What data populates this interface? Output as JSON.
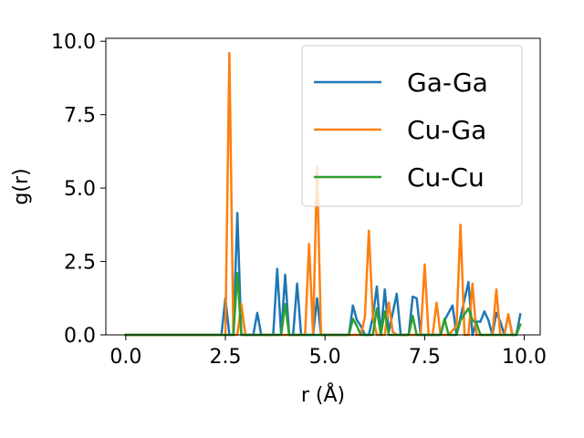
{
  "chart_data": {
    "type": "line",
    "title": "",
    "xlabel": "r (Å)",
    "ylabel": "g(r)",
    "xlim": [
      -0.5,
      10.4
    ],
    "ylim": [
      0,
      10.1
    ],
    "xticks": [
      "0.0",
      "2.5",
      "5.0",
      "7.5",
      "10.0"
    ],
    "yticks": [
      "0.0",
      "2.5",
      "5.0",
      "7.5",
      "10.0"
    ],
    "grid": false,
    "legend_position": "top-right",
    "series": [
      {
        "name": "Ga-Ga",
        "color": "#1f77b4",
        "points": [
          [
            0,
            0
          ],
          [
            2.4,
            0
          ],
          [
            2.5,
            1.25
          ],
          [
            2.6,
            0
          ],
          [
            2.7,
            0
          ],
          [
            2.8,
            4.15
          ],
          [
            2.9,
            0
          ],
          [
            3.2,
            0
          ],
          [
            3.3,
            0.75
          ],
          [
            3.4,
            0
          ],
          [
            3.7,
            0
          ],
          [
            3.8,
            2.25
          ],
          [
            3.9,
            0
          ],
          [
            4.0,
            2.05
          ],
          [
            4.1,
            0
          ],
          [
            4.2,
            0
          ],
          [
            4.3,
            1.75
          ],
          [
            4.4,
            0
          ],
          [
            4.7,
            0
          ],
          [
            4.8,
            1.25
          ],
          [
            4.9,
            0
          ],
          [
            5.6,
            0
          ],
          [
            5.7,
            1.0
          ],
          [
            5.8,
            0.5
          ],
          [
            5.9,
            0.3
          ],
          [
            6.0,
            0
          ],
          [
            6.1,
            0
          ],
          [
            6.2,
            0.6
          ],
          [
            6.3,
            1.65
          ],
          [
            6.4,
            0
          ],
          [
            6.5,
            1.55
          ],
          [
            6.6,
            0.1
          ],
          [
            6.8,
            1.4
          ],
          [
            6.9,
            0
          ],
          [
            7.1,
            0
          ],
          [
            7.2,
            1.3
          ],
          [
            7.3,
            1.25
          ],
          [
            7.4,
            0
          ],
          [
            7.9,
            0
          ],
          [
            8.0,
            0.5
          ],
          [
            8.2,
            1.0
          ],
          [
            8.3,
            0
          ],
          [
            8.6,
            1.8
          ],
          [
            8.7,
            0
          ],
          [
            8.8,
            0.45
          ],
          [
            8.9,
            0.45
          ],
          [
            9.0,
            0.8
          ],
          [
            9.1,
            0.5
          ],
          [
            9.2,
            0
          ],
          [
            9.3,
            0.75
          ],
          [
            9.4,
            0.45
          ],
          [
            9.5,
            0
          ],
          [
            9.6,
            0.7
          ],
          [
            9.7,
            0
          ],
          [
            9.8,
            0
          ],
          [
            9.9,
            0.7
          ]
        ]
      },
      {
        "name": "Cu-Ga",
        "color": "#ff7f0e",
        "points": [
          [
            0,
            0
          ],
          [
            2.5,
            0
          ],
          [
            2.6,
            9.6
          ],
          [
            2.7,
            0
          ],
          [
            2.8,
            0
          ],
          [
            2.9,
            1.05
          ],
          [
            3.0,
            0
          ],
          [
            4.5,
            0
          ],
          [
            4.6,
            3.1
          ],
          [
            4.7,
            0
          ],
          [
            4.8,
            5.75
          ],
          [
            4.9,
            0
          ],
          [
            5.9,
            0
          ],
          [
            6.0,
            0.6
          ],
          [
            6.1,
            3.55
          ],
          [
            6.2,
            0.6
          ],
          [
            6.3,
            0
          ],
          [
            6.5,
            0
          ],
          [
            6.6,
            1.1
          ],
          [
            6.7,
            0.1
          ],
          [
            6.8,
            0
          ],
          [
            7.4,
            0
          ],
          [
            7.5,
            2.4
          ],
          [
            7.6,
            0
          ],
          [
            7.7,
            0
          ],
          [
            7.8,
            1.1
          ],
          [
            7.9,
            0
          ],
          [
            8.1,
            0
          ],
          [
            8.3,
            0.3
          ],
          [
            8.4,
            3.75
          ],
          [
            8.5,
            0
          ],
          [
            8.6,
            0
          ],
          [
            8.7,
            1.75
          ],
          [
            8.8,
            0
          ],
          [
            9.2,
            0
          ],
          [
            9.3,
            1.55
          ],
          [
            9.4,
            0
          ],
          [
            9.5,
            0
          ],
          [
            9.6,
            0.7
          ],
          [
            9.7,
            0
          ]
        ]
      },
      {
        "name": "Cu-Cu",
        "color": "#2ca02c",
        "points": [
          [
            0,
            0
          ],
          [
            2.7,
            0
          ],
          [
            2.8,
            2.1
          ],
          [
            2.9,
            0
          ],
          [
            3.9,
            0
          ],
          [
            4.0,
            1.05
          ],
          [
            4.1,
            0
          ],
          [
            5.6,
            0
          ],
          [
            5.7,
            0.55
          ],
          [
            5.8,
            0.3
          ],
          [
            5.9,
            0
          ],
          [
            6.2,
            0
          ],
          [
            6.3,
            0.9
          ],
          [
            6.4,
            0
          ],
          [
            6.5,
            0.8
          ],
          [
            6.6,
            0
          ],
          [
            7.1,
            0
          ],
          [
            7.2,
            0.65
          ],
          [
            7.3,
            0
          ],
          [
            7.9,
            0
          ],
          [
            8.0,
            0.55
          ],
          [
            8.1,
            0
          ],
          [
            8.3,
            0
          ],
          [
            8.4,
            0.5
          ],
          [
            8.6,
            0.9
          ],
          [
            8.7,
            0.5
          ],
          [
            8.8,
            0.4
          ],
          [
            8.9,
            0
          ],
          [
            9.8,
            0
          ],
          [
            9.9,
            0.35
          ]
        ]
      }
    ]
  }
}
